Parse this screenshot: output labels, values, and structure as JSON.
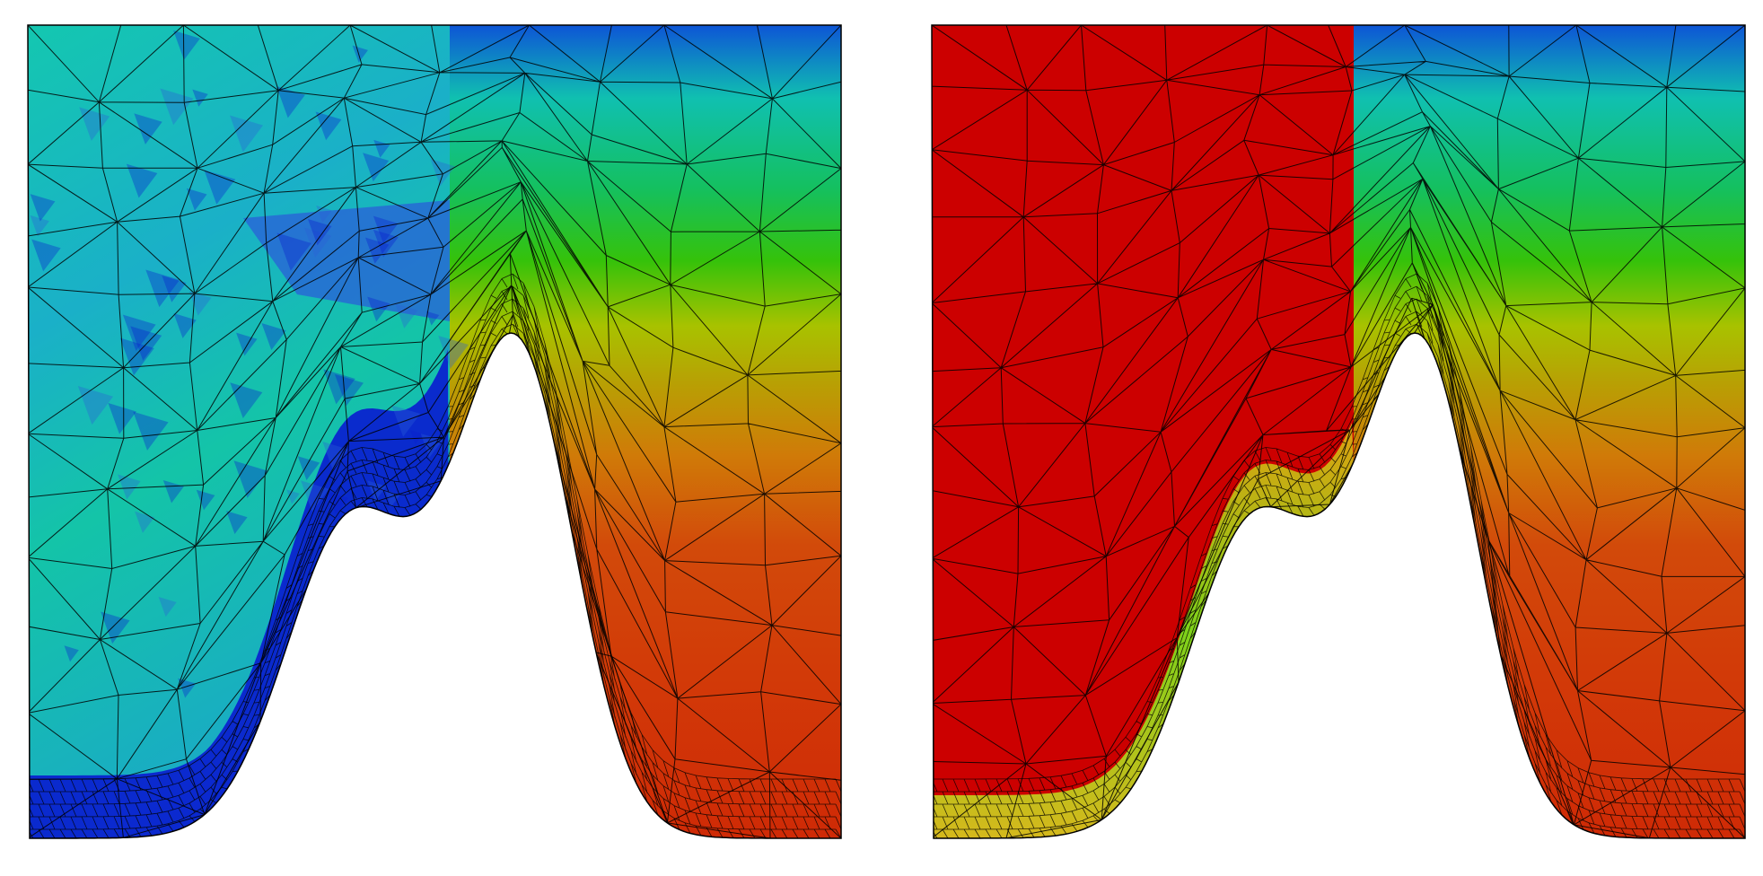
{
  "panels": [
    {
      "id": "left",
      "field_left": "smooth-cool",
      "field_right": "vertical-gradient",
      "refined_band": "blue"
    },
    {
      "id": "right",
      "field_left": "uniform-red",
      "field_right": "vertical-gradient",
      "refined_band": "green"
    }
  ],
  "colors": {
    "blue_dark": "#0a1ecf",
    "blue": "#2a5fd8",
    "cyan": "#12c7a6",
    "teal": "#10b89a",
    "green": "#33c20a",
    "yellow_green": "#a8c200",
    "orange": "#d07a08",
    "red_orange": "#d2400a",
    "red": "#cc0000",
    "mesh_line": "#000000",
    "frame": "#000000"
  }
}
